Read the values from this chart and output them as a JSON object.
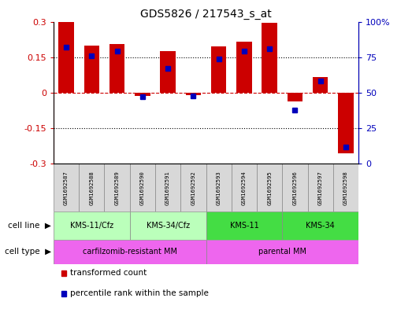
{
  "title": "GDS5826 / 217543_s_at",
  "samples": [
    "GSM1692587",
    "GSM1692588",
    "GSM1692589",
    "GSM1692590",
    "GSM1692591",
    "GSM1692592",
    "GSM1692593",
    "GSM1692594",
    "GSM1692595",
    "GSM1692596",
    "GSM1692597",
    "GSM1692598"
  ],
  "transformed_count": [
    0.302,
    0.2,
    0.205,
    -0.012,
    0.175,
    -0.01,
    0.195,
    0.215,
    0.295,
    -0.038,
    0.065,
    -0.255
  ],
  "percentile_rank": [
    82,
    76,
    79,
    47,
    67,
    48,
    74,
    79,
    81,
    38,
    58,
    12
  ],
  "cell_line_groups": [
    {
      "label": "KMS-11/Cfz",
      "start": 0,
      "end": 2,
      "light": true
    },
    {
      "label": "KMS-34/Cfz",
      "start": 3,
      "end": 5,
      "light": true
    },
    {
      "label": "KMS-11",
      "start": 6,
      "end": 8,
      "light": false
    },
    {
      "label": "KMS-34",
      "start": 9,
      "end": 11,
      "light": false
    }
  ],
  "cell_type_groups": [
    {
      "label": "carfilzomib-resistant MM",
      "start": 0,
      "end": 5
    },
    {
      "label": "parental MM",
      "start": 6,
      "end": 11
    }
  ],
  "bar_color": "#cc0000",
  "dot_color": "#0000bb",
  "cell_line_color_light": "#bbffbb",
  "cell_line_color_dark": "#44dd44",
  "cell_type_color": "#ee66ee",
  "sample_box_color": "#d8d8d8",
  "ylim_left": [
    -0.3,
    0.3
  ],
  "ylim_right": [
    0,
    100
  ],
  "yticks_left": [
    -0.3,
    -0.15,
    0,
    0.15,
    0.3
  ],
  "yticks_right": [
    0,
    25,
    50,
    75,
    100
  ],
  "ytick_labels_left": [
    "-0.3",
    "-0.15",
    "0",
    "0.15",
    "0.3"
  ],
  "ytick_labels_right": [
    "0",
    "25",
    "50",
    "75",
    "100%"
  ],
  "hlines_dotted": [
    -0.15,
    0.15
  ],
  "hline_zero_color": "#cc0000",
  "legend_items": [
    {
      "color": "#cc0000",
      "label": "transformed count"
    },
    {
      "color": "#0000bb",
      "label": "percentile rank within the sample"
    }
  ]
}
